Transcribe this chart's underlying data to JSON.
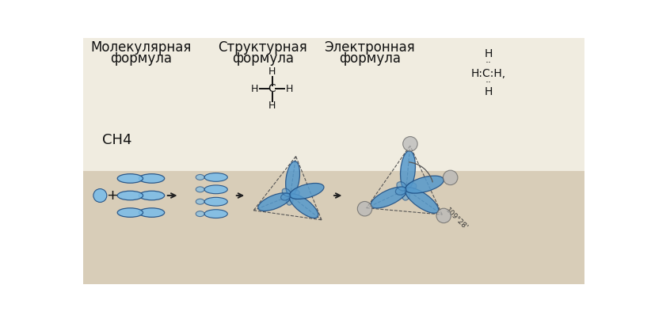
{
  "bg_top": "#f0ece0",
  "bg_bottom": "#d8cdb8",
  "title_mol": "Молекулярная",
  "title_str": "Структурная",
  "title_el": "Электронная",
  "sub_mol": "формула",
  "sub_str": "формула",
  "sub_el": "формула",
  "ch4_label": "СН4",
  "blue_dark": "#3a7ab8",
  "blue_mid": "#5599cc",
  "blue_light": "#7bbde8",
  "blue_edge": "#1a4a80",
  "gray_sphere": "#b0b0b0",
  "gray_edge": "#707070",
  "text_color": "#111111",
  "dashed_color": "#555555",
  "arrow_color": "#222222",
  "font_size_title": 12,
  "font_size_label": 10,
  "font_size_ch4": 13,
  "font_size_formula": 9,
  "font_size_electron": 10,
  "figw": 8.22,
  "figh": 4.03,
  "dpi": 100
}
